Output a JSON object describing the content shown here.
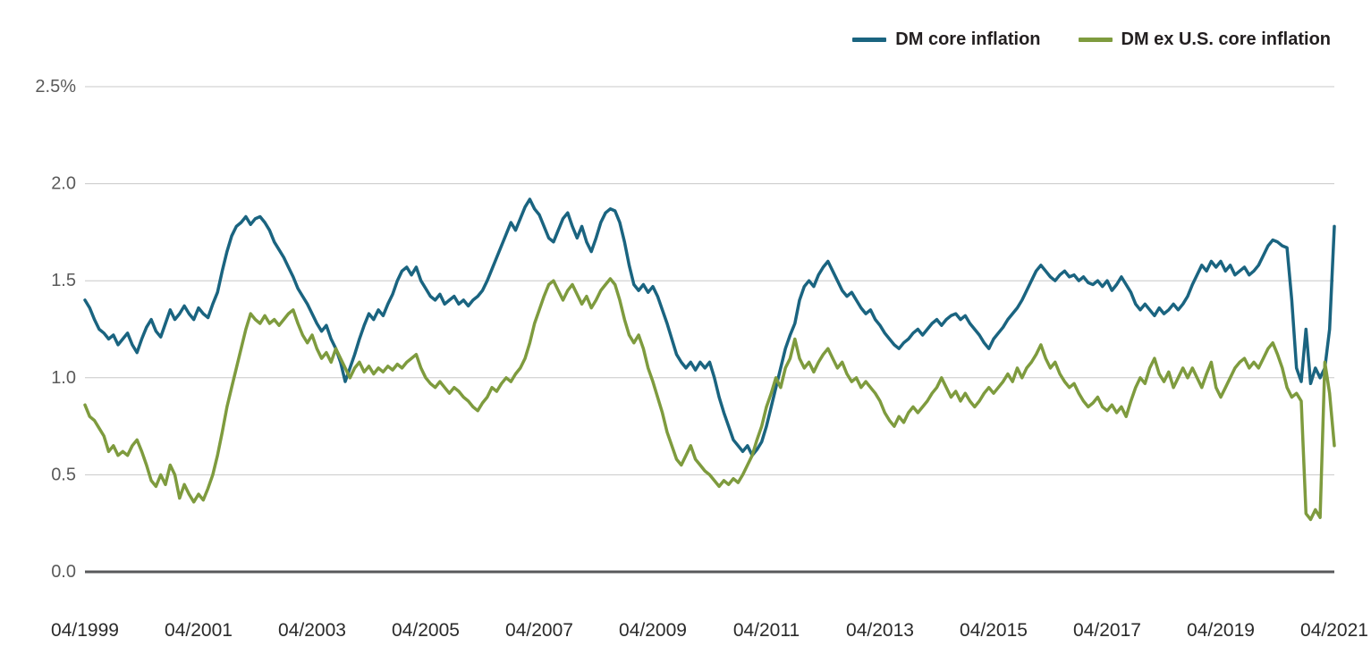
{
  "chart_data": {
    "type": "line",
    "title": "",
    "xlabel": "",
    "ylabel": "",
    "frequency": "monthly",
    "x_start": "04/1999",
    "x_end": "04/2021",
    "ylim": [
      0,
      2.5
    ],
    "grid": "horizontal",
    "legend_position": "top-right",
    "colors": {
      "grid": "#c8c8c8",
      "axis": "#58595b",
      "ytick_text": "#5a5a5a",
      "xtick_text": "#2a2a2a",
      "legend_text": "#231f20"
    },
    "yticks": [
      {
        "label": "2.5%",
        "value": 2.5
      },
      {
        "label": "2.0",
        "value": 2.0
      },
      {
        "label": "1.5",
        "value": 1.5
      },
      {
        "label": "1.0",
        "value": 1.0
      },
      {
        "label": "0.5",
        "value": 0.5
      },
      {
        "label": "0.0",
        "value": 0.0
      }
    ],
    "xticks": [
      {
        "label": "04/1999",
        "index": 0
      },
      {
        "label": "04/2001",
        "index": 24
      },
      {
        "label": "04/2003",
        "index": 48
      },
      {
        "label": "04/2005",
        "index": 72
      },
      {
        "label": "04/2007",
        "index": 96
      },
      {
        "label": "04/2009",
        "index": 120
      },
      {
        "label": "04/2011",
        "index": 144
      },
      {
        "label": "04/2013",
        "index": 168
      },
      {
        "label": "04/2015",
        "index": 192
      },
      {
        "label": "04/2017",
        "index": 216
      },
      {
        "label": "04/2019",
        "index": 240
      },
      {
        "label": "04/2021",
        "index": 264
      }
    ],
    "series": [
      {
        "name": "DM core inflation",
        "id": "dm-core-inflation-line",
        "color": "#1a6480",
        "values": [
          1.4,
          1.36,
          1.3,
          1.25,
          1.23,
          1.2,
          1.22,
          1.17,
          1.2,
          1.23,
          1.17,
          1.13,
          1.2,
          1.26,
          1.3,
          1.24,
          1.21,
          1.28,
          1.35,
          1.3,
          1.33,
          1.37,
          1.33,
          1.3,
          1.36,
          1.33,
          1.31,
          1.38,
          1.44,
          1.55,
          1.65,
          1.73,
          1.78,
          1.8,
          1.83,
          1.79,
          1.82,
          1.83,
          1.8,
          1.76,
          1.7,
          1.66,
          1.62,
          1.57,
          1.52,
          1.46,
          1.42,
          1.38,
          1.33,
          1.28,
          1.24,
          1.27,
          1.2,
          1.15,
          1.08,
          0.98,
          1.05,
          1.12,
          1.2,
          1.27,
          1.33,
          1.3,
          1.35,
          1.32,
          1.38,
          1.43,
          1.5,
          1.55,
          1.57,
          1.53,
          1.57,
          1.5,
          1.46,
          1.42,
          1.4,
          1.43,
          1.38,
          1.4,
          1.42,
          1.38,
          1.4,
          1.37,
          1.4,
          1.42,
          1.45,
          1.5,
          1.56,
          1.62,
          1.68,
          1.74,
          1.8,
          1.76,
          1.82,
          1.88,
          1.92,
          1.87,
          1.84,
          1.78,
          1.72,
          1.7,
          1.76,
          1.82,
          1.85,
          1.78,
          1.72,
          1.78,
          1.7,
          1.65,
          1.72,
          1.8,
          1.85,
          1.87,
          1.86,
          1.8,
          1.7,
          1.58,
          1.48,
          1.45,
          1.48,
          1.44,
          1.47,
          1.42,
          1.35,
          1.28,
          1.2,
          1.12,
          1.08,
          1.05,
          1.08,
          1.04,
          1.08,
          1.05,
          1.08,
          1.0,
          0.9,
          0.82,
          0.75,
          0.68,
          0.65,
          0.62,
          0.65,
          0.6,
          0.63,
          0.67,
          0.75,
          0.85,
          0.95,
          1.05,
          1.15,
          1.22,
          1.28,
          1.4,
          1.47,
          1.5,
          1.47,
          1.53,
          1.57,
          1.6,
          1.55,
          1.5,
          1.45,
          1.42,
          1.44,
          1.4,
          1.36,
          1.33,
          1.35,
          1.3,
          1.27,
          1.23,
          1.2,
          1.17,
          1.15,
          1.18,
          1.2,
          1.23,
          1.25,
          1.22,
          1.25,
          1.28,
          1.3,
          1.27,
          1.3,
          1.32,
          1.33,
          1.3,
          1.32,
          1.28,
          1.25,
          1.22,
          1.18,
          1.15,
          1.2,
          1.23,
          1.26,
          1.3,
          1.33,
          1.36,
          1.4,
          1.45,
          1.5,
          1.55,
          1.58,
          1.55,
          1.52,
          1.5,
          1.53,
          1.55,
          1.52,
          1.53,
          1.5,
          1.52,
          1.49,
          1.48,
          1.5,
          1.47,
          1.5,
          1.45,
          1.48,
          1.52,
          1.48,
          1.44,
          1.38,
          1.35,
          1.38,
          1.35,
          1.32,
          1.36,
          1.33,
          1.35,
          1.38,
          1.35,
          1.38,
          1.42,
          1.48,
          1.53,
          1.58,
          1.55,
          1.6,
          1.57,
          1.6,
          1.55,
          1.58,
          1.53,
          1.55,
          1.57,
          1.53,
          1.55,
          1.58,
          1.63,
          1.68,
          1.71,
          1.7,
          1.68,
          1.67,
          1.4,
          1.05,
          0.98,
          1.25,
          0.97,
          1.05,
          1.0,
          1.05,
          1.25,
          1.78
        ]
      },
      {
        "name": "DM ex U.S. core inflation",
        "id": "dm-ex-us-core-inflation-line",
        "color": "#7e9b3e",
        "values": [
          0.86,
          0.8,
          0.78,
          0.74,
          0.7,
          0.62,
          0.65,
          0.6,
          0.62,
          0.6,
          0.65,
          0.68,
          0.62,
          0.55,
          0.47,
          0.44,
          0.5,
          0.45,
          0.55,
          0.5,
          0.38,
          0.45,
          0.4,
          0.36,
          0.4,
          0.37,
          0.43,
          0.5,
          0.6,
          0.72,
          0.85,
          0.95,
          1.05,
          1.15,
          1.25,
          1.33,
          1.3,
          1.28,
          1.32,
          1.28,
          1.3,
          1.27,
          1.3,
          1.33,
          1.35,
          1.28,
          1.22,
          1.18,
          1.22,
          1.15,
          1.1,
          1.13,
          1.08,
          1.15,
          1.1,
          1.05,
          1.0,
          1.05,
          1.08,
          1.03,
          1.06,
          1.02,
          1.05,
          1.03,
          1.06,
          1.04,
          1.07,
          1.05,
          1.08,
          1.1,
          1.12,
          1.05,
          1.0,
          0.97,
          0.95,
          0.98,
          0.95,
          0.92,
          0.95,
          0.93,
          0.9,
          0.88,
          0.85,
          0.83,
          0.87,
          0.9,
          0.95,
          0.93,
          0.97,
          1.0,
          0.98,
          1.02,
          1.05,
          1.1,
          1.18,
          1.28,
          1.35,
          1.42,
          1.48,
          1.5,
          1.45,
          1.4,
          1.45,
          1.48,
          1.43,
          1.38,
          1.42,
          1.36,
          1.4,
          1.45,
          1.48,
          1.51,
          1.48,
          1.4,
          1.3,
          1.22,
          1.18,
          1.22,
          1.15,
          1.05,
          0.98,
          0.9,
          0.82,
          0.72,
          0.65,
          0.58,
          0.55,
          0.6,
          0.65,
          0.58,
          0.55,
          0.52,
          0.5,
          0.47,
          0.44,
          0.47,
          0.45,
          0.48,
          0.46,
          0.5,
          0.55,
          0.6,
          0.68,
          0.75,
          0.85,
          0.92,
          1.0,
          0.95,
          1.05,
          1.1,
          1.2,
          1.1,
          1.05,
          1.08,
          1.03,
          1.08,
          1.12,
          1.15,
          1.1,
          1.05,
          1.08,
          1.02,
          0.98,
          1.0,
          0.95,
          0.98,
          0.95,
          0.92,
          0.88,
          0.82,
          0.78,
          0.75,
          0.8,
          0.77,
          0.82,
          0.85,
          0.82,
          0.85,
          0.88,
          0.92,
          0.95,
          1.0,
          0.95,
          0.9,
          0.93,
          0.88,
          0.92,
          0.88,
          0.85,
          0.88,
          0.92,
          0.95,
          0.92,
          0.95,
          0.98,
          1.02,
          0.98,
          1.05,
          1.0,
          1.05,
          1.08,
          1.12,
          1.17,
          1.1,
          1.05,
          1.08,
          1.02,
          0.98,
          0.95,
          0.97,
          0.92,
          0.88,
          0.85,
          0.87,
          0.9,
          0.85,
          0.83,
          0.86,
          0.82,
          0.85,
          0.8,
          0.88,
          0.95,
          1.0,
          0.97,
          1.05,
          1.1,
          1.02,
          0.98,
          1.03,
          0.95,
          1.0,
          1.05,
          1.0,
          1.05,
          1.0,
          0.95,
          1.02,
          1.08,
          0.95,
          0.9,
          0.95,
          1.0,
          1.05,
          1.08,
          1.1,
          1.05,
          1.08,
          1.05,
          1.1,
          1.15,
          1.18,
          1.12,
          1.05,
          0.95,
          0.9,
          0.92,
          0.88,
          0.3,
          0.27,
          0.32,
          0.28,
          1.08,
          0.92,
          0.65
        ]
      }
    ]
  }
}
